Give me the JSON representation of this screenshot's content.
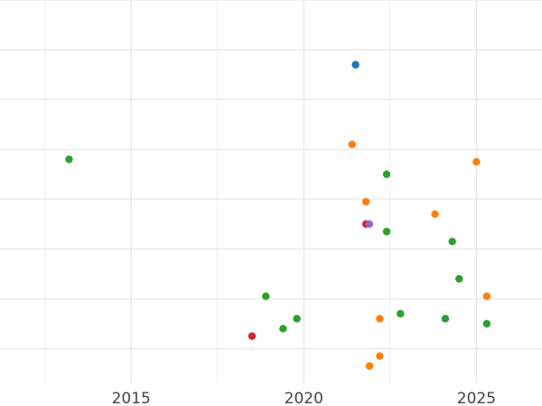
{
  "chart_data": {
    "type": "scatter",
    "title": "",
    "xlabel": "",
    "ylabel": "",
    "xlim": [
      2011.2,
      2026.9
    ],
    "ylim": [
      0,
      7.7
    ],
    "grid": true,
    "legend": "none",
    "x_ticks": [
      {
        "value": 2015,
        "label": "2015"
      },
      {
        "value": 2020,
        "label": "2020"
      },
      {
        "value": 2025,
        "label": "2025"
      }
    ],
    "x_minor_ticks": [
      2012.5,
      2017.5,
      2022.5
    ],
    "y_gridlines": [
      0.7,
      1.7,
      2.7,
      3.7,
      4.7,
      5.7,
      6.7,
      7.7
    ],
    "series": [
      {
        "color": "#1f77b4",
        "points": [
          {
            "x": 2021.5,
            "y": 6.4
          }
        ]
      },
      {
        "color": "#ff7f0e",
        "points": [
          {
            "x": 2021.4,
            "y": 4.8
          },
          {
            "x": 2025.0,
            "y": 4.45
          },
          {
            "x": 2021.8,
            "y": 3.65
          },
          {
            "x": 2023.8,
            "y": 3.4
          },
          {
            "x": 2024.5,
            "y": 2.1
          },
          {
            "x": 2025.3,
            "y": 1.75
          },
          {
            "x": 2022.2,
            "y": 1.3
          },
          {
            "x": 2022.2,
            "y": 0.55
          },
          {
            "x": 2021.9,
            "y": 0.35
          }
        ]
      },
      {
        "color": "#2ca02c",
        "points": [
          {
            "x": 2013.2,
            "y": 4.5
          },
          {
            "x": 2022.4,
            "y": 4.2
          },
          {
            "x": 2022.4,
            "y": 3.05
          },
          {
            "x": 2024.3,
            "y": 2.85
          },
          {
            "x": 2024.5,
            "y": 2.1
          },
          {
            "x": 2018.9,
            "y": 1.75
          },
          {
            "x": 2022.8,
            "y": 1.4
          },
          {
            "x": 2019.8,
            "y": 1.3
          },
          {
            "x": 2024.1,
            "y": 1.3
          },
          {
            "x": 2025.3,
            "y": 1.2
          },
          {
            "x": 2019.4,
            "y": 1.1
          }
        ]
      },
      {
        "color": "#d62728",
        "points": [
          {
            "x": 2021.8,
            "y": 3.2
          },
          {
            "x": 2018.5,
            "y": 0.95
          }
        ]
      },
      {
        "color": "#9467bd",
        "points": [
          {
            "x": 2021.9,
            "y": 3.2
          }
        ]
      }
    ]
  }
}
